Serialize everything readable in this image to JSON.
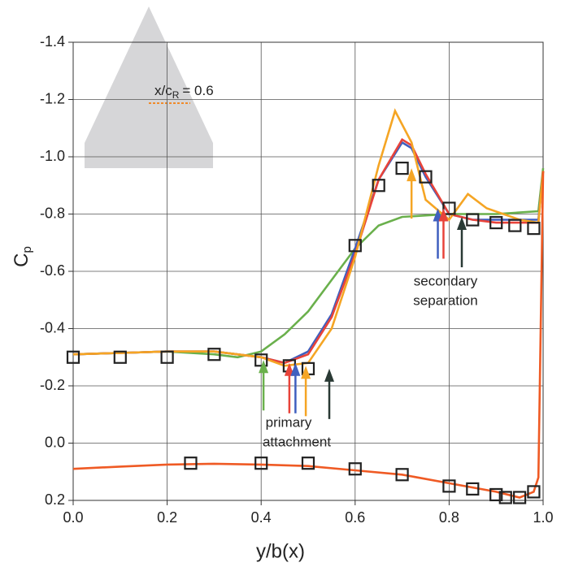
{
  "chart_data": {
    "type": "line",
    "x_label": "y/b(x)",
    "y_label": "C",
    "y_label_sub": "p",
    "xlim": [
      0,
      1.0
    ],
    "ylim": [
      0.2,
      -1.4
    ],
    "xticks": [
      {
        "value": 0,
        "label": "0.0"
      },
      0.2,
      0.4,
      0.6,
      0.8,
      {
        "value": 1,
        "label": "1.0"
      }
    ],
    "yticks": [
      0.2,
      {
        "value": 0,
        "label": "0.0"
      },
      -0.2,
      -0.4,
      -0.6,
      -0.8,
      {
        "value": -1,
        "label": "-1.0"
      },
      -1.2,
      -1.4
    ],
    "grid": true,
    "series": [
      {
        "style": "line",
        "color": "#6ab04c",
        "x": [
          0,
          0.1,
          0.2,
          0.3,
          0.35,
          0.4,
          0.45,
          0.5,
          0.55,
          0.6,
          0.65,
          0.7,
          0.8,
          0.9,
          0.99,
          1.0
        ],
        "values": [
          -0.31,
          -0.315,
          -0.32,
          -0.31,
          -0.3,
          -0.32,
          -0.38,
          -0.46,
          -0.57,
          -0.68,
          -0.76,
          -0.79,
          -0.8,
          -0.8,
          -0.81,
          -0.96
        ]
      },
      {
        "style": "line",
        "color": "#3f5fbf",
        "x": [
          0,
          0.1,
          0.2,
          0.3,
          0.4,
          0.45,
          0.5,
          0.55,
          0.6,
          0.65,
          0.7,
          0.72,
          0.75,
          0.8,
          0.85,
          0.9,
          0.99,
          1.0
        ],
        "values": [
          -0.31,
          -0.315,
          -0.32,
          -0.32,
          -0.3,
          -0.28,
          -0.32,
          -0.45,
          -0.68,
          -0.92,
          -1.05,
          -1.03,
          -0.93,
          -0.8,
          -0.78,
          -0.78,
          -0.78,
          -0.95
        ]
      },
      {
        "style": "line",
        "color": "#e8433a",
        "x": [
          0,
          0.1,
          0.2,
          0.3,
          0.4,
          0.45,
          0.5,
          0.55,
          0.6,
          0.65,
          0.7,
          0.72,
          0.75,
          0.8,
          0.85,
          0.9,
          0.99,
          1.0
        ],
        "values": [
          -0.31,
          -0.315,
          -0.32,
          -0.32,
          -0.3,
          -0.28,
          -0.31,
          -0.44,
          -0.66,
          -0.92,
          -1.06,
          -1.04,
          -0.94,
          -0.8,
          -0.78,
          -0.77,
          -0.77,
          -0.95
        ]
      },
      {
        "style": "line",
        "color": "#f5a524",
        "x": [
          0,
          0.1,
          0.2,
          0.3,
          0.4,
          0.45,
          0.5,
          0.55,
          0.6,
          0.65,
          0.685,
          0.72,
          0.75,
          0.8,
          0.84,
          0.88,
          0.95,
          0.99,
          1.0
        ],
        "values": [
          -0.31,
          -0.315,
          -0.32,
          -0.32,
          -0.3,
          -0.27,
          -0.28,
          -0.4,
          -0.65,
          -0.97,
          -1.16,
          -1.05,
          -0.85,
          -0.78,
          -0.87,
          -0.82,
          -0.78,
          -0.77,
          -0.95
        ]
      },
      {
        "style": "line",
        "color": "#ef5a24",
        "x": [
          0,
          0.1,
          0.2,
          0.3,
          0.4,
          0.5,
          0.6,
          0.7,
          0.8,
          0.9,
          0.95,
          0.98,
          0.99,
          1.0
        ],
        "values": [
          0.09,
          0.082,
          0.075,
          0.072,
          0.075,
          0.08,
          0.095,
          0.11,
          0.14,
          0.17,
          0.19,
          0.17,
          0.12,
          -0.95
        ]
      },
      {
        "style": "markers",
        "color": "#222222",
        "x": [
          0,
          0.1,
          0.2,
          0.3,
          0.4,
          0.46,
          0.5,
          0.6,
          0.65,
          0.7,
          0.75,
          0.8,
          0.85,
          0.9,
          0.94,
          0.98
        ],
        "values": [
          -0.3,
          -0.3,
          -0.3,
          -0.31,
          -0.29,
          -0.27,
          -0.26,
          -0.69,
          -0.9,
          -0.96,
          -0.93,
          -0.82,
          -0.78,
          -0.77,
          -0.76,
          -0.75
        ]
      },
      {
        "style": "markers",
        "color": "#222222",
        "x": [
          0.25,
          0.4,
          0.5,
          0.6,
          0.7,
          0.8,
          0.85,
          0.9,
          0.92,
          0.95,
          0.98
        ],
        "values": [
          0.07,
          0.07,
          0.07,
          0.09,
          0.11,
          0.15,
          0.16,
          0.18,
          0.19,
          0.19,
          0.17
        ]
      }
    ],
    "arrows": [
      {
        "x": 0.405,
        "y": -0.29,
        "color": "#6ab04c"
      },
      {
        "x": 0.46,
        "y": -0.28,
        "color": "#e8433a"
      },
      {
        "x": 0.473,
        "y": -0.28,
        "color": "#3f5fbf"
      },
      {
        "x": 0.495,
        "y": -0.27,
        "color": "#f5a524"
      },
      {
        "x": 0.545,
        "y": -0.26,
        "color": "#2a3a35"
      },
      {
        "x": 0.72,
        "y": -0.96,
        "color": "#f5a524"
      },
      {
        "x": 0.776,
        "y": -0.82,
        "color": "#3f5fbf"
      },
      {
        "x": 0.788,
        "y": -0.82,
        "color": "#e8433a"
      },
      {
        "x": 0.827,
        "y": -0.79,
        "color": "#2a3a35"
      }
    ],
    "annotations": [
      {
        "text": "primary",
        "line2": "attachment"
      },
      {
        "text": "secondary",
        "line2": "separation"
      }
    ],
    "inset_label": "x/c",
    "inset_label_sub": "R",
    "inset_label_rest": "= 0.6"
  }
}
